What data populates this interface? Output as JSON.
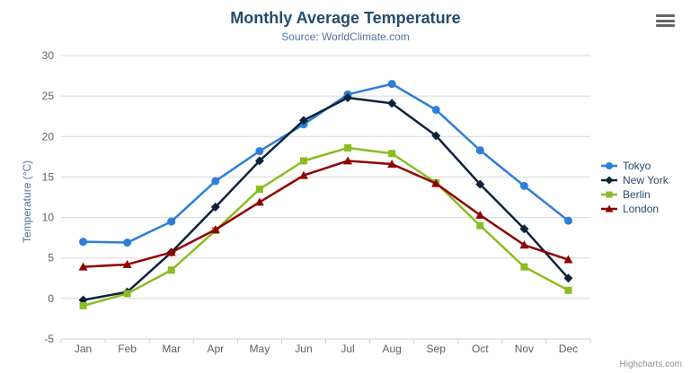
{
  "credits": "Highcharts.com",
  "icons": {
    "export_menu": "hamburger-icon"
  },
  "colors": {
    "title": "#274b6d",
    "subtitle": "#4d759e",
    "axis_title": "#4d759e",
    "tick_labels": "#606060",
    "gridline": "#d8d8d8",
    "axis_line": "#c0d0e0",
    "credits": "#909090"
  },
  "chart_data": {
    "type": "line",
    "title": "Monthly Average Temperature",
    "subtitle": "Source: WorldClimate.com",
    "xlabel": "",
    "ylabel": "Temperature (°C)",
    "categories": [
      "Jan",
      "Feb",
      "Mar",
      "Apr",
      "May",
      "Jun",
      "Jul",
      "Aug",
      "Sep",
      "Oct",
      "Nov",
      "Dec"
    ],
    "series": [
      {
        "name": "Tokyo",
        "color": "#2f7ed8",
        "marker": "circle",
        "values": [
          7.0,
          6.9,
          9.5,
          14.5,
          18.2,
          21.5,
          25.2,
          26.5,
          23.3,
          18.3,
          13.9,
          9.6
        ]
      },
      {
        "name": "New York",
        "color": "#0d233a",
        "marker": "diamond",
        "values": [
          -0.2,
          0.8,
          5.7,
          11.3,
          17.0,
          22.0,
          24.8,
          24.1,
          20.1,
          14.1,
          8.6,
          2.5
        ]
      },
      {
        "name": "Berlin",
        "color": "#8bbc21",
        "marker": "square",
        "values": [
          -0.9,
          0.6,
          3.5,
          8.4,
          13.5,
          17.0,
          18.6,
          17.9,
          14.3,
          9.0,
          3.9,
          1.0
        ]
      },
      {
        "name": "London",
        "color": "#910000",
        "marker": "triangle",
        "values": [
          3.9,
          4.2,
          5.7,
          8.5,
          11.9,
          15.2,
          17.0,
          16.6,
          14.2,
          10.3,
          6.6,
          4.8
        ]
      }
    ],
    "ylim": [
      -5,
      30
    ],
    "ytick_step": 5,
    "grid": true,
    "legend_position": "right"
  }
}
